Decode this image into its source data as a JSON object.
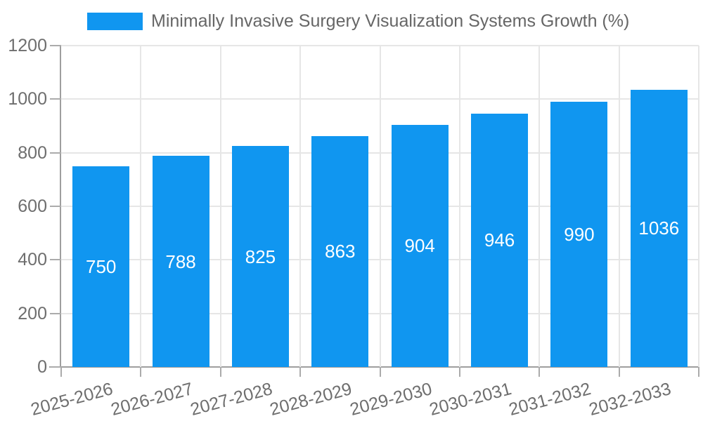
{
  "legend": {
    "label": "Minimally Invasive Surgery Visualization Systems Growth (%)"
  },
  "colors": {
    "bar": "#1096f0",
    "gridline": "#e6e6e6",
    "axis_line": "#9e9e9e",
    "tick_mark": "#ababab",
    "tick_text": "#6e6e6e",
    "legend_text": "#666666",
    "value_label_text": "#ffffff",
    "background": "#ffffff"
  },
  "chart_data": {
    "type": "bar",
    "title": "Minimally Invasive Surgery Visualization Systems Growth (%)",
    "categories": [
      "2025-2026",
      "2026-2027",
      "2027-2028",
      "2028-2029",
      "2029-2030",
      "2030-2031",
      "2031-2032",
      "2032-2033"
    ],
    "values": [
      750,
      788,
      825,
      863,
      904,
      946,
      990,
      1036
    ],
    "xlabel": "",
    "ylabel": "",
    "ylim": [
      0,
      1200
    ],
    "yticks": [
      0,
      200,
      400,
      600,
      800,
      1000,
      1200
    ],
    "grid": true,
    "legend_position": "top",
    "value_labels_position": "inside-center",
    "x_tick_label_rotation_deg": -15
  }
}
